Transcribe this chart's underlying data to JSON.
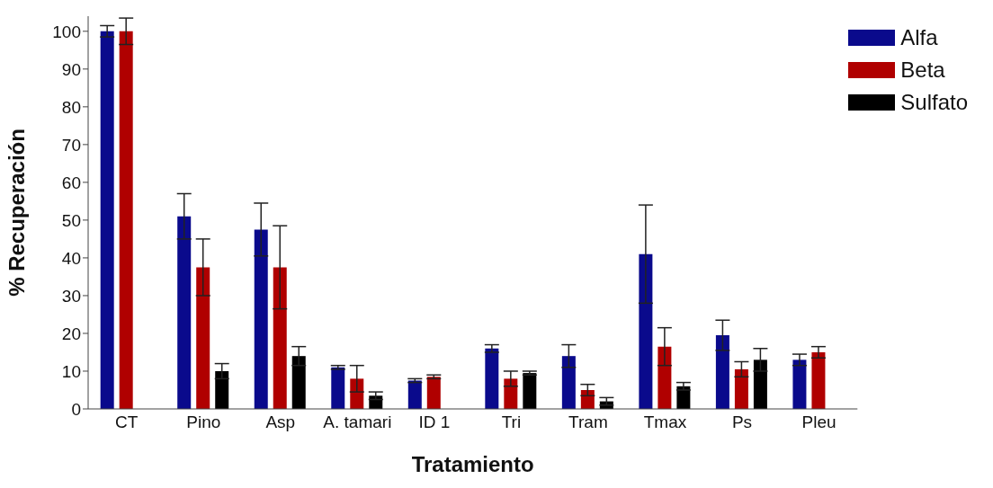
{
  "chart_data": {
    "type": "bar",
    "xlabel": "Tratamiento",
    "ylabel": "% Recuperación",
    "categories": [
      "CT",
      "Pino",
      "Asp",
      "A. tamari",
      "ID 1",
      "Tri",
      "Tram",
      "Tmax",
      "Ps",
      "Pleu"
    ],
    "series": [
      {
        "name": "Alfa",
        "color": "#0a0a8c",
        "values": [
          100,
          51,
          47.5,
          11,
          7.5,
          16,
          14,
          41,
          19.5,
          13
        ],
        "errors": [
          1.5,
          6,
          7,
          0.5,
          0.5,
          1,
          3,
          13,
          4,
          1.5
        ]
      },
      {
        "name": "Beta",
        "color": "#b00000",
        "values": [
          100,
          37.5,
          37.5,
          8,
          8.5,
          8,
          5,
          16.5,
          10.5,
          15
        ],
        "errors": [
          3.5,
          7.5,
          11,
          3.5,
          0.5,
          2,
          1.5,
          5,
          2,
          1.5
        ]
      },
      {
        "name": "Sulfato",
        "color": "#000000",
        "values": [
          null,
          10,
          14,
          3.5,
          null,
          9.5,
          2,
          6,
          13,
          null
        ],
        "errors": [
          null,
          2,
          2.5,
          1,
          null,
          0.5,
          1,
          1,
          3,
          null
        ]
      }
    ],
    "ylim": [
      0,
      104
    ],
    "yticks": [
      0,
      10,
      20,
      30,
      40,
      50,
      60,
      70,
      80,
      90,
      100
    ],
    "grid": false,
    "legend": "top right"
  }
}
